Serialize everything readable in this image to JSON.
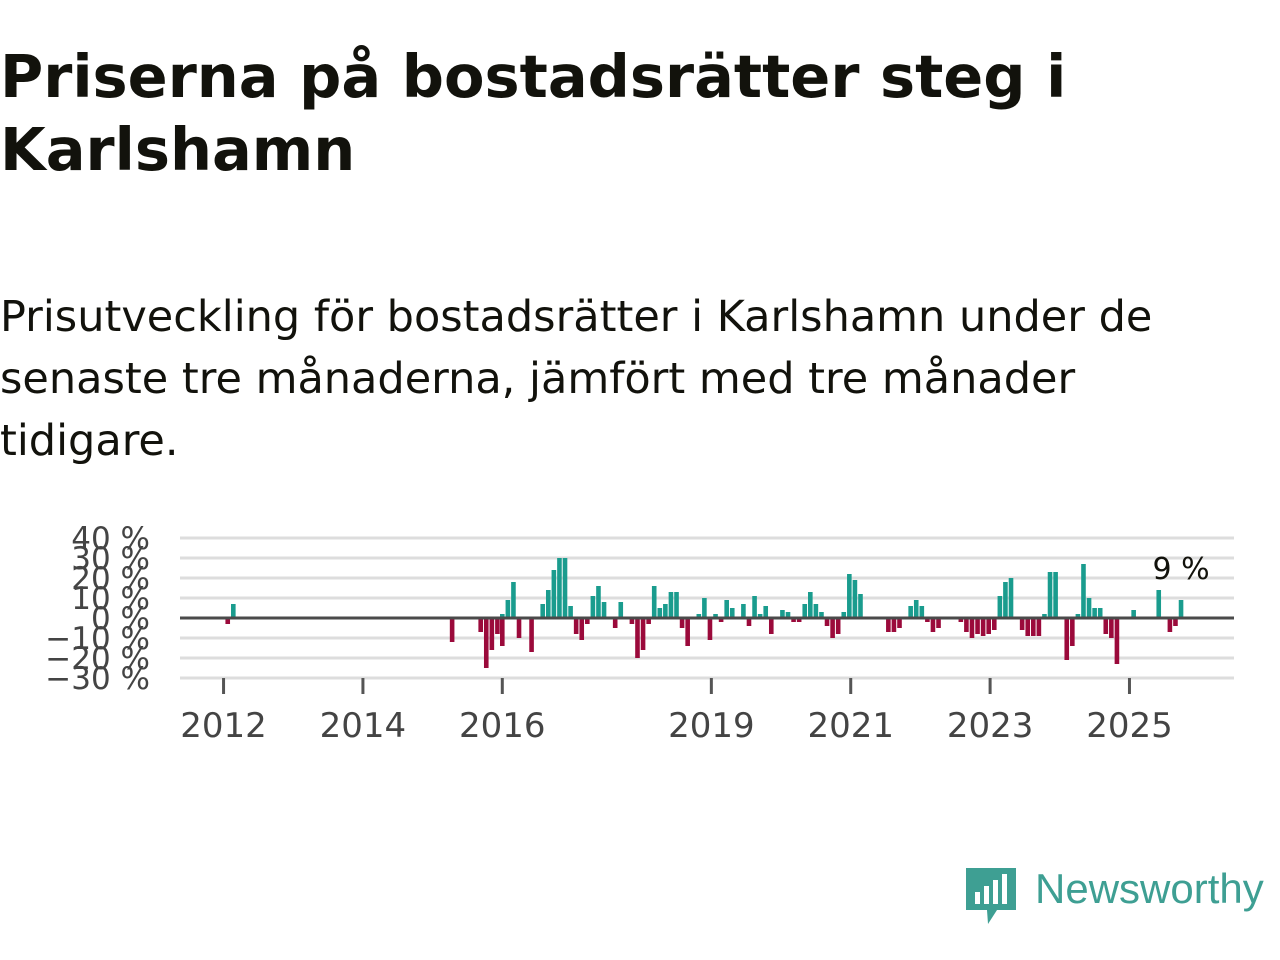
{
  "header": {
    "title": "Priserna på bostadsrätter steg i Karlshamn",
    "subtitle": "Prisutveckling för bostadsrätter i Karlshamn under de senaste tre månaderna, jämfört med tre månader tidigare."
  },
  "colors": {
    "positive": "#1a9c8e",
    "negative": "#9b0a3b",
    "zero_line": "#4a4a4a",
    "grid": "#dddddd",
    "brand": "#3e9f93"
  },
  "chart_data": {
    "type": "bar",
    "title": "Priserna på bostadsrätter steg i Karlshamn",
    "ylabel": "",
    "xlabel": "",
    "ylim": [
      -30,
      40
    ],
    "y_ticks": [
      40,
      30,
      20,
      10,
      0,
      -10,
      -20,
      -30
    ],
    "y_tick_labels": [
      "40 %",
      "30 %",
      "20 %",
      "10 %",
      "0 %",
      "−10 %",
      "−20 %",
      "−30 %"
    ],
    "x_ticks": [
      {
        "label": "2012",
        "year": 2012.0
      },
      {
        "label": "2014",
        "year": 2014.0
      },
      {
        "label": "2016",
        "year": 2016.0
      },
      {
        "label": "2019",
        "year": 2019.0
      },
      {
        "label": "2021",
        "year": 2021.0
      },
      {
        "label": "2023",
        "year": 2023.0
      },
      {
        "label": "2025",
        "year": 2025.0
      }
    ],
    "x_range": [
      2011.375,
      2026.5
    ],
    "last_value_label": "9 %",
    "series": [
      {
        "name": "Prisutveckling",
        "values": [
          {
            "year": 2012.06,
            "value": -3
          },
          {
            "year": 2012.14,
            "value": 7
          },
          {
            "year": 2015.28,
            "value": -12
          },
          {
            "year": 2015.69,
            "value": -7
          },
          {
            "year": 2015.77,
            "value": -25
          },
          {
            "year": 2015.85,
            "value": -16
          },
          {
            "year": 2015.93,
            "value": -8
          },
          {
            "year": 2016.0,
            "value": -14
          },
          {
            "year": 2016.0,
            "value": 2
          },
          {
            "year": 2016.08,
            "value": 9
          },
          {
            "year": 2016.16,
            "value": 18
          },
          {
            "year": 2016.24,
            "value": -10
          },
          {
            "year": 2016.42,
            "value": -17
          },
          {
            "year": 2016.58,
            "value": 7
          },
          {
            "year": 2016.66,
            "value": 14
          },
          {
            "year": 2016.74,
            "value": 24
          },
          {
            "year": 2016.82,
            "value": 30
          },
          {
            "year": 2016.9,
            "value": 30
          },
          {
            "year": 2016.98,
            "value": 6
          },
          {
            "year": 2017.06,
            "value": -8
          },
          {
            "year": 2017.14,
            "value": -11
          },
          {
            "year": 2017.22,
            "value": -3
          },
          {
            "year": 2017.3,
            "value": 11
          },
          {
            "year": 2017.38,
            "value": 16
          },
          {
            "year": 2017.46,
            "value": 8
          },
          {
            "year": 2017.62,
            "value": -5
          },
          {
            "year": 2017.7,
            "value": 8
          },
          {
            "year": 2017.86,
            "value": -3
          },
          {
            "year": 2017.94,
            "value": -20
          },
          {
            "year": 2018.02,
            "value": -16
          },
          {
            "year": 2018.1,
            "value": -3
          },
          {
            "year": 2018.18,
            "value": 16
          },
          {
            "year": 2018.26,
            "value": 5
          },
          {
            "year": 2018.34,
            "value": 7
          },
          {
            "year": 2018.42,
            "value": 13
          },
          {
            "year": 2018.5,
            "value": 13
          },
          {
            "year": 2018.58,
            "value": -5
          },
          {
            "year": 2018.66,
            "value": -14
          },
          {
            "year": 2018.82,
            "value": 2
          },
          {
            "year": 2018.9,
            "value": 10
          },
          {
            "year": 2018.98,
            "value": -11
          },
          {
            "year": 2019.06,
            "value": 2
          },
          {
            "year": 2019.14,
            "value": -2
          },
          {
            "year": 2019.22,
            "value": 9
          },
          {
            "year": 2019.3,
            "value": 5
          },
          {
            "year": 2019.46,
            "value": 7
          },
          {
            "year": 2019.54,
            "value": -4
          },
          {
            "year": 2019.62,
            "value": 11
          },
          {
            "year": 2019.7,
            "value": 2
          },
          {
            "year": 2019.78,
            "value": 6
          },
          {
            "year": 2019.86,
            "value": -8
          },
          {
            "year": 2020.02,
            "value": 4
          },
          {
            "year": 2020.1,
            "value": 3
          },
          {
            "year": 2020.18,
            "value": -2
          },
          {
            "year": 2020.26,
            "value": -2
          },
          {
            "year": 2020.34,
            "value": 7
          },
          {
            "year": 2020.42,
            "value": 13
          },
          {
            "year": 2020.5,
            "value": 7
          },
          {
            "year": 2020.58,
            "value": 3
          },
          {
            "year": 2020.66,
            "value": -4
          },
          {
            "year": 2020.74,
            "value": -10
          },
          {
            "year": 2020.82,
            "value": -8
          },
          {
            "year": 2020.9,
            "value": 3
          },
          {
            "year": 2020.98,
            "value": 22
          },
          {
            "year": 2021.06,
            "value": 19
          },
          {
            "year": 2021.14,
            "value": 12
          },
          {
            "year": 2021.54,
            "value": -7
          },
          {
            "year": 2021.62,
            "value": -7
          },
          {
            "year": 2021.7,
            "value": -5
          },
          {
            "year": 2021.86,
            "value": 6
          },
          {
            "year": 2021.94,
            "value": 9
          },
          {
            "year": 2022.02,
            "value": 6
          },
          {
            "year": 2022.1,
            "value": -2
          },
          {
            "year": 2022.18,
            "value": -7
          },
          {
            "year": 2022.26,
            "value": -5
          },
          {
            "year": 2022.58,
            "value": -2
          },
          {
            "year": 2022.66,
            "value": -7
          },
          {
            "year": 2022.74,
            "value": -10
          },
          {
            "year": 2022.82,
            "value": -8
          },
          {
            "year": 2022.9,
            "value": -9
          },
          {
            "year": 2022.98,
            "value": -8
          },
          {
            "year": 2023.06,
            "value": -6
          },
          {
            "year": 2023.14,
            "value": 11
          },
          {
            "year": 2023.22,
            "value": 18
          },
          {
            "year": 2023.3,
            "value": 20
          },
          {
            "year": 2023.46,
            "value": -6
          },
          {
            "year": 2023.54,
            "value": -9
          },
          {
            "year": 2023.62,
            "value": -9
          },
          {
            "year": 2023.7,
            "value": -9
          },
          {
            "year": 2023.78,
            "value": 2
          },
          {
            "year": 2023.86,
            "value": 23
          },
          {
            "year": 2023.94,
            "value": 23
          },
          {
            "year": 2024.1,
            "value": -21
          },
          {
            "year": 2024.18,
            "value": -14
          },
          {
            "year": 2024.26,
            "value": 2
          },
          {
            "year": 2024.34,
            "value": 27
          },
          {
            "year": 2024.42,
            "value": 10
          },
          {
            "year": 2024.5,
            "value": 5
          },
          {
            "year": 2024.58,
            "value": 5
          },
          {
            "year": 2024.66,
            "value": -8
          },
          {
            "year": 2024.74,
            "value": -10
          },
          {
            "year": 2024.82,
            "value": -23
          },
          {
            "year": 2025.06,
            "value": 4
          },
          {
            "year": 2025.42,
            "value": 14
          },
          {
            "year": 2025.58,
            "value": -7
          },
          {
            "year": 2025.66,
            "value": -4
          },
          {
            "year": 2025.74,
            "value": 9
          }
        ]
      }
    ]
  },
  "brand": {
    "name": "Newsworthy"
  }
}
